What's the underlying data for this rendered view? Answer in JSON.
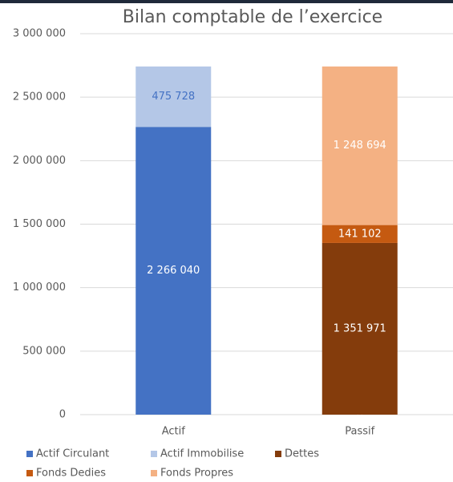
{
  "chart_data": {
    "type": "stacked_bar",
    "title": "Bilan comptable de l’exercice",
    "categories": [
      "Actif",
      "Passif"
    ],
    "series": [
      {
        "name": "Actif Circulant",
        "color": "#4472c4",
        "label_color": "#ffffff",
        "values": [
          2266040,
          0
        ],
        "value_labels": [
          "2 266 040",
          "0"
        ]
      },
      {
        "name": "Actif Immobilise",
        "color": "#b4c7e7",
        "label_color": "#4472c4",
        "values": [
          475728,
          null
        ],
        "value_labels": [
          "475 728",
          null
        ]
      },
      {
        "name": "Dettes",
        "color": "#843c0c",
        "label_color": "#ffffff",
        "values": [
          null,
          1351971
        ],
        "value_labels": [
          null,
          "1 351 971"
        ]
      },
      {
        "name": "Fonds Dedies",
        "color": "#c55a11",
        "label_color": "#ffffff",
        "values": [
          null,
          141102
        ],
        "value_labels": [
          null,
          "141 102"
        ]
      },
      {
        "name": "Fonds Propres",
        "color": "#f4b183",
        "label_color": "#ffffff",
        "values": [
          null,
          1248694
        ],
        "value_labels": [
          null,
          "1 248 694"
        ]
      }
    ],
    "ylim": [
      0,
      3000000
    ],
    "yticks": [
      0,
      {
        "value": 500000,
        "label": "500 000"
      },
      {
        "value": 1000000,
        "label": "1 000 000"
      },
      {
        "value": 1500000,
        "label": "1 500 000"
      },
      {
        "value": 2000000,
        "label": "2 000 000"
      },
      {
        "value": 2500000,
        "label": "2 500 000"
      },
      {
        "value": 3000000,
        "label": "3 000 000"
      }
    ],
    "grid": true,
    "legend": "bottom"
  }
}
